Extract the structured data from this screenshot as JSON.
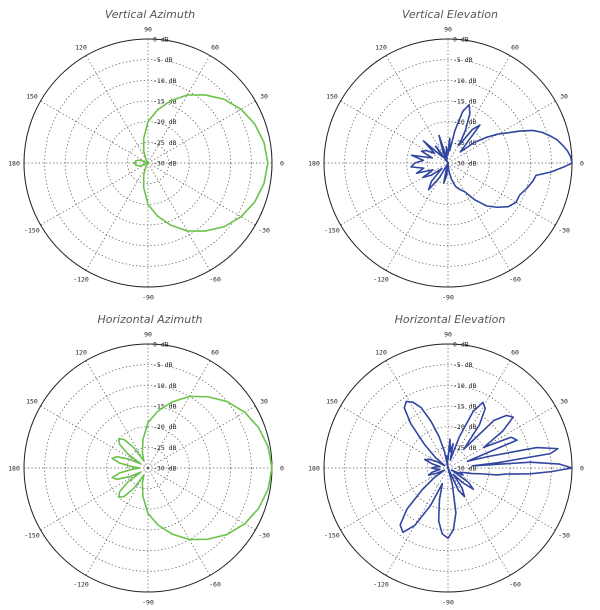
{
  "angle_ticks": [
    "0",
    "30",
    "60",
    "90",
    "120",
    "150",
    "180",
    "-150",
    "-120",
    "-90",
    "-60",
    "-30"
  ],
  "radial_ticks": [
    "0 dB",
    "-5 dB",
    "-10 dB",
    "-15 dB",
    "-20 dB",
    "-25 dB",
    "-30 dB"
  ],
  "colors": {
    "green": "#6cc24a",
    "blue": "#3246a0"
  },
  "chart_data": [
    {
      "type": "polar",
      "title": "Vertical Azimuth",
      "color": "#6cc24a",
      "r_range_db": [
        -30,
        0
      ],
      "series": [
        {
          "theta_deg": [
            0,
            10,
            20,
            30,
            40,
            50,
            60,
            70,
            80,
            90,
            100,
            110,
            120,
            130,
            140,
            150,
            160,
            165,
            170,
            175,
            180,
            185,
            190,
            195,
            200,
            210,
            220,
            230,
            240,
            250,
            260,
            270,
            280,
            290,
            300,
            310,
            320,
            330,
            340,
            350,
            360
          ],
          "gain_db": [
            -1,
            -1.5,
            -2.5,
            -4,
            -6,
            -8.5,
            -11,
            -14,
            -17,
            -20,
            -24,
            -27,
            -29,
            -30,
            -30,
            -30,
            -28,
            -27.5,
            -27,
            -27,
            -26.5,
            -27,
            -27,
            -27.5,
            -28,
            -30,
            -30,
            -30,
            -29,
            -27,
            -24,
            -20,
            -17,
            -14,
            -11,
            -8.5,
            -6,
            -4,
            -2.5,
            -1.5,
            -1
          ]
        }
      ]
    },
    {
      "type": "polar",
      "title": "Vertical Elevation",
      "color": "#3246a0",
      "r_range_db": [
        -30,
        0
      ],
      "series": [
        {
          "theta_deg": [
            0,
            3,
            6,
            9,
            12,
            15,
            18,
            21,
            24,
            27,
            30,
            34,
            38,
            42,
            46,
            50,
            54,
            58,
            62,
            66,
            70,
            74,
            78,
            82,
            86,
            90,
            96,
            102,
            108,
            114,
            120,
            126,
            132,
            138,
            144,
            150,
            156,
            162,
            168,
            174,
            180,
            186,
            192,
            198,
            204,
            210,
            216,
            222,
            228,
            234,
            240,
            246,
            252,
            258,
            264,
            270,
            276,
            282,
            288,
            294,
            300,
            306,
            312,
            318,
            324,
            330,
            336,
            342,
            348,
            352,
            355,
            358,
            360
          ],
          "gain_db": [
            0,
            -0.3,
            -1,
            -2,
            -3,
            -4.5,
            -6,
            -8,
            -11,
            -14,
            -16,
            -19,
            -22,
            -26,
            -24,
            -18,
            -20,
            -25,
            -21,
            -17,
            -15,
            -17,
            -22,
            -27,
            -24,
            -28,
            -26,
            -29,
            -23,
            -27,
            -30,
            -25,
            -28,
            -22,
            -26,
            -24,
            -23,
            -26,
            -21,
            -24,
            -22,
            -21,
            -24,
            -22,
            -26,
            -23,
            -25,
            -28,
            -24,
            -22,
            -26,
            -30,
            -29,
            -25,
            -27,
            -30,
            -28,
            -26,
            -24,
            -23,
            -22,
            -19,
            -16,
            -14,
            -12,
            -11,
            -11,
            -10,
            -9,
            -8.5,
            -5,
            -2,
            0
          ]
        }
      ]
    },
    {
      "type": "polar",
      "title": "Horizontal Azimuth",
      "color": "#6cc24a",
      "r_range_db": [
        -30,
        0
      ],
      "series": [
        {
          "theta_deg": [
            0,
            10,
            20,
            30,
            40,
            50,
            60,
            70,
            80,
            90,
            100,
            110,
            120,
            125,
            130,
            135,
            140,
            145,
            150,
            155,
            160,
            165,
            170,
            175,
            180,
            185,
            190,
            195,
            200,
            205,
            210,
            215,
            220,
            225,
            230,
            235,
            240,
            250,
            260,
            270,
            280,
            290,
            300,
            310,
            320,
            330,
            340,
            350,
            360
          ],
          "gain_db": [
            0,
            -0.5,
            -1.5,
            -3,
            -5,
            -7.5,
            -10,
            -13,
            -16,
            -19,
            -23,
            -26,
            -28,
            -24,
            -21,
            -20,
            -21,
            -24,
            -28,
            -25,
            -22,
            -21,
            -23,
            -26,
            -28,
            -26,
            -23,
            -21,
            -22,
            -25,
            -28,
            -24,
            -21,
            -20,
            -21,
            -24,
            -28,
            -26,
            -23,
            -19,
            -16,
            -13,
            -10,
            -7.5,
            -5,
            -3,
            -1.5,
            -0.5,
            0
          ]
        }
      ]
    },
    {
      "type": "polar",
      "title": "Horizontal Elevation",
      "color": "#3246a0",
      "r_range_db": [
        -30,
        0
      ],
      "series": [
        {
          "theta_deg": [
            0,
            2,
            4,
            5,
            6,
            8,
            10,
            13,
            16,
            19,
            22,
            26,
            30,
            34,
            38,
            42,
            46,
            50,
            54,
            58,
            62,
            66,
            70,
            74,
            78,
            82,
            86,
            90,
            94,
            98,
            102,
            106,
            110,
            114,
            118,
            122,
            126,
            130,
            135,
            140,
            145,
            150,
            155,
            160,
            165,
            170,
            175,
            180,
            185,
            190,
            195,
            200,
            205,
            210,
            215,
            220,
            225,
            230,
            235,
            240,
            245,
            250,
            255,
            260,
            265,
            270,
            275,
            280,
            285,
            290,
            295,
            300,
            305,
            310,
            315,
            320,
            325,
            330,
            335,
            340,
            344,
            347,
            350,
            352,
            354,
            356,
            358,
            360
          ],
          "gain_db": [
            0,
            -3,
            -10,
            -24,
            -18,
            -5,
            -3,
            -8,
            -20,
            -25,
            -12,
            -13,
            -20,
            -14,
            -10,
            -11,
            -14,
            -24,
            -17,
            -13,
            -12,
            -15,
            -22,
            -28,
            -24,
            -26,
            -23,
            -28,
            -27,
            -30,
            -26,
            -22,
            -18,
            -14,
            -12,
            -11,
            -12,
            -16,
            -22,
            -26,
            -29,
            -27,
            -25,
            -24,
            -26,
            -28,
            -27,
            -26,
            -27,
            -28,
            -26,
            -25,
            -27,
            -29,
            -26,
            -22,
            -16,
            -12,
            -11,
            -14,
            -20,
            -26,
            -22,
            -17,
            -14,
            -13,
            -15,
            -19,
            -26,
            -30,
            -24,
            -22,
            -24,
            -28,
            -25,
            -22,
            -24,
            -29,
            -26,
            -27,
            -26,
            -24,
            -22,
            -18,
            -16,
            -10,
            -5,
            0
          ]
        }
      ]
    }
  ]
}
